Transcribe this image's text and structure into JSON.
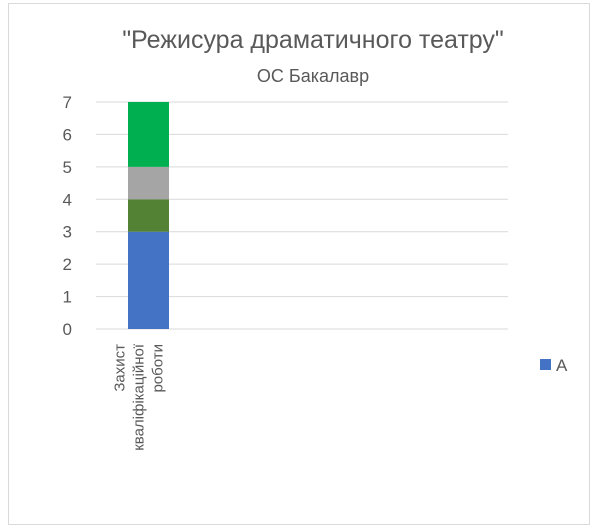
{
  "chart_data": {
    "type": "bar",
    "stacked": true,
    "title": "\"Режисура драматичного театру\"",
    "subtitle": "ОС Бакалавр",
    "categories": [
      [
        "Захист",
        "кваліфікаційної",
        "роботи"
      ]
    ],
    "ylim": [
      0,
      7
    ],
    "yticks": [
      0,
      1,
      2,
      3,
      4,
      5,
      6,
      7
    ],
    "grid": true,
    "legend_position": "right",
    "series": [
      {
        "name": "А",
        "color": "#4472c4",
        "values": [
          3
        ]
      },
      {
        "color": "#548235",
        "values": [
          1
        ]
      },
      {
        "color": "#a5a5a5",
        "values": [
          1
        ]
      },
      {
        "color": "#00b050",
        "values": [
          2
        ]
      }
    ]
  }
}
